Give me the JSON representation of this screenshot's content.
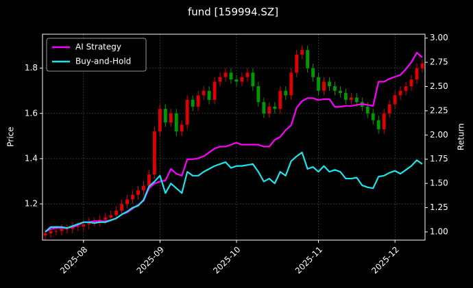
{
  "chart_data": {
    "type": "candlestick",
    "title": "fund [159994.SZ]",
    "ylabel": "Price",
    "y2label": "Return",
    "categories": [
      null,
      null,
      null,
      null,
      null,
      null,
      null,
      "2025-08",
      null,
      null,
      null,
      null,
      null,
      null,
      null,
      null,
      null,
      null,
      null,
      null,
      null,
      "2025-09",
      null,
      null,
      null,
      null,
      null,
      null,
      null,
      null,
      null,
      null,
      null,
      null,
      null,
      "2025-10",
      null,
      null,
      null,
      null,
      null,
      null,
      null,
      null,
      null,
      null,
      null,
      null,
      null,
      null,
      "2025-11",
      null,
      null,
      null,
      null,
      null,
      null,
      null,
      null,
      null,
      null,
      null,
      null,
      null,
      "2025-12",
      null,
      null,
      null,
      null,
      null
    ],
    "candles": {
      "open": [
        1.06,
        1.07,
        1.08,
        1.08,
        1.09,
        1.09,
        1.1,
        1.1,
        1.11,
        1.12,
        1.12,
        1.13,
        1.14,
        1.15,
        1.17,
        1.2,
        1.22,
        1.24,
        1.26,
        1.28,
        1.33,
        1.52,
        1.62,
        1.56,
        1.6,
        1.52,
        1.55,
        1.66,
        1.63,
        1.68,
        1.7,
        1.66,
        1.74,
        1.76,
        1.78,
        1.75,
        1.74,
        1.76,
        1.78,
        1.72,
        1.65,
        1.6,
        1.63,
        1.62,
        1.7,
        1.68,
        1.78,
        1.86,
        1.88,
        1.8,
        1.76,
        1.7,
        1.74,
        1.72,
        1.7,
        1.69,
        1.66,
        1.67,
        1.65,
        1.63,
        1.6,
        1.57,
        1.53,
        1.6,
        1.64,
        1.68,
        1.7,
        1.72,
        1.75,
        1.8
      ],
      "high": [
        1.09,
        1.1,
        1.1,
        1.11,
        1.11,
        1.12,
        1.12,
        1.13,
        1.14,
        1.14,
        1.15,
        1.16,
        1.17,
        1.19,
        1.22,
        1.24,
        1.26,
        1.28,
        1.3,
        1.35,
        1.54,
        1.64,
        1.64,
        1.62,
        1.62,
        1.57,
        1.68,
        1.68,
        1.7,
        1.72,
        1.72,
        1.76,
        1.78,
        1.8,
        1.8,
        1.77,
        1.78,
        1.8,
        1.8,
        1.74,
        1.67,
        1.65,
        1.65,
        1.72,
        1.72,
        1.8,
        1.88,
        1.9,
        1.9,
        1.82,
        1.78,
        1.76,
        1.76,
        1.74,
        1.72,
        1.71,
        1.69,
        1.69,
        1.67,
        1.65,
        1.62,
        1.59,
        1.62,
        1.66,
        1.7,
        1.72,
        1.74,
        1.77,
        1.82,
        1.84
      ],
      "low": [
        1.04,
        1.05,
        1.06,
        1.06,
        1.07,
        1.07,
        1.08,
        1.08,
        1.09,
        1.1,
        1.1,
        1.11,
        1.12,
        1.13,
        1.15,
        1.18,
        1.2,
        1.22,
        1.24,
        1.26,
        1.31,
        1.5,
        1.54,
        1.54,
        1.5,
        1.5,
        1.53,
        1.61,
        1.61,
        1.66,
        1.64,
        1.64,
        1.72,
        1.74,
        1.73,
        1.72,
        1.72,
        1.74,
        1.7,
        1.63,
        1.58,
        1.58,
        1.6,
        1.6,
        1.66,
        1.66,
        1.76,
        1.84,
        1.78,
        1.74,
        1.68,
        1.68,
        1.7,
        1.68,
        1.67,
        1.64,
        1.64,
        1.63,
        1.61,
        1.58,
        1.55,
        1.51,
        1.51,
        1.58,
        1.62,
        1.66,
        1.68,
        1.7,
        1.73,
        1.78
      ],
      "close": [
        1.07,
        1.08,
        1.08,
        1.09,
        1.09,
        1.1,
        1.1,
        1.11,
        1.12,
        1.12,
        1.13,
        1.14,
        1.15,
        1.17,
        1.2,
        1.22,
        1.24,
        1.26,
        1.28,
        1.33,
        1.52,
        1.62,
        1.56,
        1.6,
        1.52,
        1.55,
        1.66,
        1.63,
        1.68,
        1.7,
        1.66,
        1.74,
        1.76,
        1.78,
        1.75,
        1.74,
        1.76,
        1.78,
        1.72,
        1.65,
        1.6,
        1.63,
        1.62,
        1.7,
        1.68,
        1.78,
        1.86,
        1.88,
        1.8,
        1.76,
        1.7,
        1.74,
        1.72,
        1.7,
        1.69,
        1.66,
        1.67,
        1.65,
        1.63,
        1.6,
        1.57,
        1.53,
        1.6,
        1.64,
        1.68,
        1.7,
        1.72,
        1.75,
        1.8,
        1.82
      ],
      "up_color": "#e00000",
      "down_color": "#009a00"
    },
    "series": [
      {
        "name": "AI Strategy",
        "color": "#ff00ff",
        "axis": "y2",
        "values": [
          1.0,
          1.03,
          1.04,
          1.04,
          1.04,
          1.05,
          1.07,
          1.1,
          1.1,
          1.11,
          1.11,
          1.11,
          1.12,
          1.14,
          1.18,
          1.2,
          1.24,
          1.28,
          1.32,
          1.45,
          1.5,
          1.52,
          1.53,
          1.65,
          1.6,
          1.58,
          1.75,
          1.75,
          1.76,
          1.78,
          1.82,
          1.86,
          1.88,
          1.88,
          1.9,
          1.92,
          1.9,
          1.9,
          1.9,
          1.9,
          1.88,
          1.88,
          1.95,
          1.98,
          2.05,
          2.1,
          2.28,
          2.35,
          2.38,
          2.38,
          2.36,
          2.37,
          2.37,
          2.29,
          2.29,
          2.3,
          2.3,
          2.31,
          2.32,
          2.31,
          2.3,
          2.55,
          2.55,
          2.58,
          2.6,
          2.62,
          2.68,
          2.75,
          2.85,
          2.8
        ]
      },
      {
        "name": "Buy-and-Hold",
        "color": "#19e6f0",
        "axis": "y2",
        "values": [
          1.0,
          1.05,
          1.05,
          1.05,
          1.04,
          1.06,
          1.08,
          1.1,
          1.1,
          1.09,
          1.1,
          1.1,
          1.12,
          1.14,
          1.18,
          1.21,
          1.25,
          1.27,
          1.33,
          1.47,
          1.52,
          1.58,
          1.4,
          1.5,
          1.45,
          1.4,
          1.62,
          1.58,
          1.58,
          1.62,
          1.65,
          1.68,
          1.7,
          1.72,
          1.66,
          1.68,
          1.68,
          1.69,
          1.7,
          1.62,
          1.52,
          1.55,
          1.5,
          1.62,
          1.58,
          1.73,
          1.78,
          1.82,
          1.65,
          1.67,
          1.62,
          1.68,
          1.62,
          1.64,
          1.62,
          1.55,
          1.55,
          1.56,
          1.48,
          1.46,
          1.45,
          1.57,
          1.58,
          1.61,
          1.63,
          1.6,
          1.64,
          1.68,
          1.74,
          1.7
        ]
      }
    ],
    "ylim": [
      1.04,
      1.95
    ],
    "yticks": [
      1.2,
      1.4,
      1.6,
      1.8
    ],
    "y2lim": [
      0.915,
      3.04
    ],
    "y2ticks": [
      {
        "value": 1,
        "label": "1.00"
      },
      {
        "value": 1.25,
        "label": "1.25"
      },
      {
        "value": 1.5,
        "label": "1.50"
      },
      {
        "value": 1.75,
        "label": "1.75"
      },
      {
        "value": 2,
        "label": "2.00"
      },
      {
        "value": 2.25,
        "label": "2.25"
      },
      {
        "value": 2.5,
        "label": "2.50"
      },
      {
        "value": 2.75,
        "label": "2.75"
      },
      {
        "value": 3,
        "label": "3.00"
      }
    ],
    "grid": true,
    "legend": "upper-left"
  }
}
